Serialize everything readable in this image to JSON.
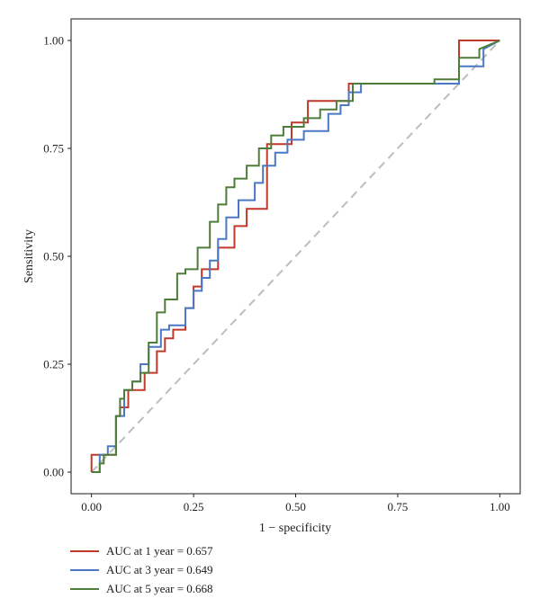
{
  "chart_data": {
    "type": "line",
    "title": "",
    "xlabel": "1 − specificity",
    "ylabel": "Sensitivity",
    "xlim": [
      -0.05,
      1.05
    ],
    "ylim": [
      -0.05,
      1.05
    ],
    "x_ticks": [
      "0.00",
      "0.25",
      "0.50",
      "0.75",
      "1.00"
    ],
    "y_ticks": [
      "0.00",
      "0.25",
      "0.50",
      "0.75",
      "1.00"
    ],
    "grid": false,
    "legend_position": "bottom-left",
    "reference_line": {
      "x": [
        0,
        1
      ],
      "y": [
        0,
        1
      ],
      "style": "dashed",
      "color": "#bdbdbd"
    },
    "series": [
      {
        "name": "AUC at 1 year = 0.657",
        "color": "#c0392b",
        "x": [
          0.0,
          0.0,
          0.06,
          0.06,
          0.07,
          0.07,
          0.09,
          0.09,
          0.13,
          0.13,
          0.16,
          0.16,
          0.18,
          0.18,
          0.2,
          0.2,
          0.23,
          0.23,
          0.25,
          0.25,
          0.27,
          0.27,
          0.31,
          0.31,
          0.35,
          0.35,
          0.38,
          0.38,
          0.43,
          0.43,
          0.46,
          0.46,
          0.49,
          0.49,
          0.53,
          0.53,
          0.63,
          0.63,
          0.9,
          0.9,
          1.0
        ],
        "y": [
          0.0,
          0.04,
          0.04,
          0.13,
          0.13,
          0.15,
          0.15,
          0.19,
          0.19,
          0.23,
          0.23,
          0.28,
          0.28,
          0.31,
          0.31,
          0.33,
          0.33,
          0.38,
          0.38,
          0.43,
          0.43,
          0.47,
          0.47,
          0.52,
          0.52,
          0.57,
          0.57,
          0.61,
          0.61,
          0.76,
          0.76,
          0.76,
          0.76,
          0.81,
          0.81,
          0.86,
          0.86,
          0.9,
          0.9,
          1.0,
          1.0
        ]
      },
      {
        "name": "AUC at 3 year = 0.649",
        "color": "#4a78c4",
        "x": [
          0.0,
          0.02,
          0.02,
          0.04,
          0.04,
          0.06,
          0.06,
          0.08,
          0.08,
          0.1,
          0.1,
          0.12,
          0.12,
          0.14,
          0.14,
          0.17,
          0.17,
          0.19,
          0.19,
          0.23,
          0.23,
          0.25,
          0.25,
          0.27,
          0.27,
          0.29,
          0.29,
          0.31,
          0.31,
          0.33,
          0.33,
          0.36,
          0.36,
          0.4,
          0.4,
          0.42,
          0.42,
          0.45,
          0.45,
          0.48,
          0.48,
          0.52,
          0.52,
          0.58,
          0.58,
          0.61,
          0.61,
          0.63,
          0.63,
          0.66,
          0.66,
          0.9,
          0.9,
          0.96,
          0.96,
          1.0
        ],
        "y": [
          0.0,
          0.0,
          0.04,
          0.04,
          0.06,
          0.06,
          0.13,
          0.13,
          0.19,
          0.19,
          0.21,
          0.21,
          0.25,
          0.25,
          0.29,
          0.29,
          0.33,
          0.33,
          0.34,
          0.34,
          0.38,
          0.38,
          0.42,
          0.42,
          0.45,
          0.45,
          0.49,
          0.49,
          0.54,
          0.54,
          0.59,
          0.59,
          0.63,
          0.63,
          0.67,
          0.67,
          0.71,
          0.71,
          0.74,
          0.74,
          0.77,
          0.77,
          0.79,
          0.79,
          0.83,
          0.83,
          0.85,
          0.85,
          0.88,
          0.88,
          0.9,
          0.9,
          0.94,
          0.94,
          0.98,
          1.0
        ]
      },
      {
        "name": "AUC at 5 year = 0.668",
        "color": "#4e7d3a",
        "x": [
          0.0,
          0.02,
          0.02,
          0.03,
          0.03,
          0.06,
          0.06,
          0.07,
          0.07,
          0.08,
          0.08,
          0.1,
          0.1,
          0.12,
          0.12,
          0.14,
          0.14,
          0.16,
          0.16,
          0.18,
          0.18,
          0.21,
          0.21,
          0.23,
          0.23,
          0.26,
          0.26,
          0.29,
          0.29,
          0.31,
          0.31,
          0.33,
          0.33,
          0.35,
          0.35,
          0.38,
          0.38,
          0.41,
          0.41,
          0.44,
          0.44,
          0.47,
          0.47,
          0.52,
          0.52,
          0.56,
          0.56,
          0.6,
          0.6,
          0.64,
          0.64,
          0.84,
          0.84,
          0.9,
          0.9,
          0.95,
          0.95,
          1.0
        ],
        "y": [
          0.0,
          0.0,
          0.02,
          0.02,
          0.04,
          0.04,
          0.13,
          0.13,
          0.17,
          0.17,
          0.19,
          0.19,
          0.21,
          0.21,
          0.23,
          0.23,
          0.3,
          0.3,
          0.37,
          0.37,
          0.4,
          0.4,
          0.46,
          0.46,
          0.47,
          0.47,
          0.52,
          0.52,
          0.58,
          0.58,
          0.62,
          0.62,
          0.66,
          0.66,
          0.68,
          0.68,
          0.71,
          0.71,
          0.75,
          0.75,
          0.78,
          0.78,
          0.8,
          0.8,
          0.82,
          0.82,
          0.84,
          0.84,
          0.86,
          0.86,
          0.9,
          0.9,
          0.91,
          0.91,
          0.96,
          0.96,
          0.98,
          1.0
        ]
      }
    ]
  }
}
